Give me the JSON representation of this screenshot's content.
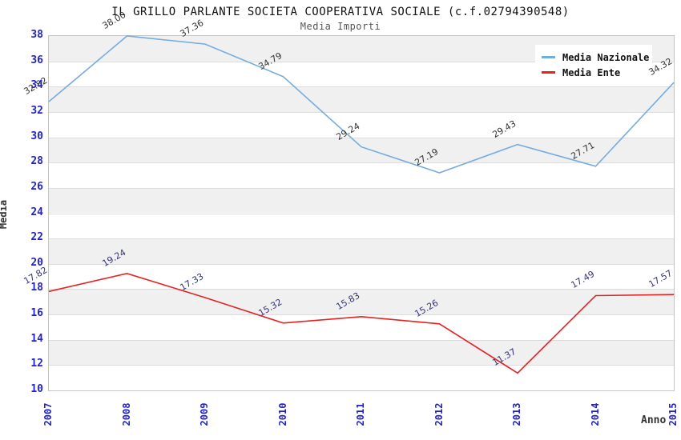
{
  "header": {
    "title": "IL GRILLO PARLANTE SOCIETA COOPERATIVA SOCIALE (c.f.02794390548)",
    "subtitle": "Media Importi"
  },
  "chart_data": {
    "type": "line",
    "title": "IL GRILLO PARLANTE SOCIETA COOPERATIVA SOCIALE (c.f.02794390548)",
    "subtitle": "Media Importi",
    "xlabel": "Anno",
    "ylabel": "Media",
    "categories": [
      "2007",
      "2008",
      "2009",
      "2010",
      "2011",
      "2012",
      "2013",
      "2014",
      "2015"
    ],
    "series": [
      {
        "name": "Media Nazionale",
        "color": "#76abde",
        "label_color": "#333333",
        "values": [
          32.82,
          38.0,
          37.36,
          34.79,
          29.24,
          27.19,
          29.43,
          27.71,
          34.32
        ]
      },
      {
        "name": "Media Ente",
        "color": "#e62222",
        "label_color": "#333377",
        "values": [
          17.82,
          19.24,
          17.33,
          15.32,
          15.83,
          15.26,
          11.37,
          17.49,
          17.57
        ]
      }
    ],
    "ylim": [
      10,
      38
    ],
    "ytick_step": 2,
    "grid": "horizontal-bands-alternating",
    "band_color": "#f0f0f0",
    "gridline_color": "#dcdcdc",
    "tick_label_color": "#2222cc",
    "legend_position": "top-right",
    "legend_entries": [
      "Media Nazionale",
      "Media Ente"
    ]
  }
}
